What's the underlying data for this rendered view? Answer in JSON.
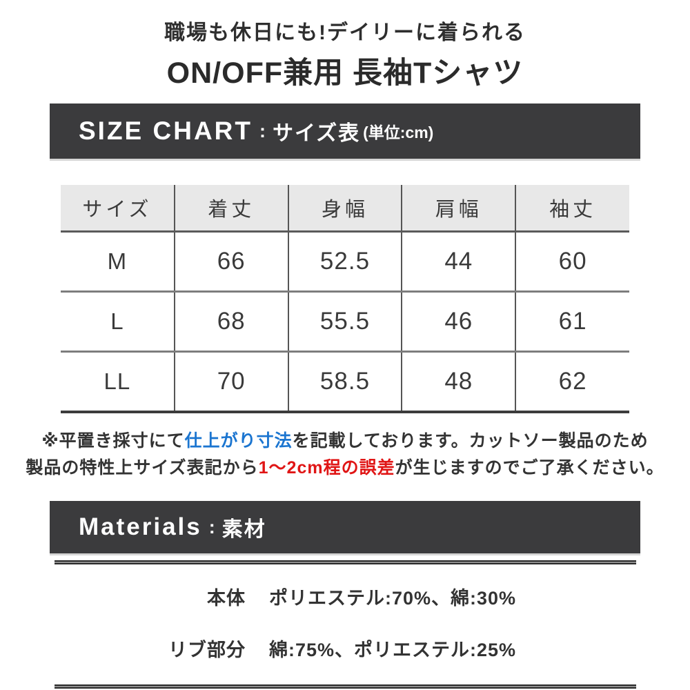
{
  "page_title": {
    "line1": "職場も休日にも!デイリーに着られる",
    "line2": "ON/OFF兼用 長袖Tシャツ"
  },
  "size_chart_banner": {
    "en_label": "SIZE CHART",
    "separator": ":",
    "ja_label": "サイズ表",
    "unit_label": "(単位:cm)"
  },
  "chart_data": {
    "type": "table",
    "title": "サイズ表",
    "unit": "cm",
    "columns": [
      "サイズ",
      "着丈",
      "身幅",
      "肩幅",
      "袖丈"
    ],
    "rows": [
      {
        "cells": [
          "M",
          "66",
          "52.5",
          "44",
          "60"
        ]
      },
      {
        "cells": [
          "L",
          "68",
          "55.5",
          "46",
          "61"
        ]
      },
      {
        "cells": [
          "LL",
          "70",
          "58.5",
          "48",
          "62"
        ]
      }
    ]
  },
  "measurement_note": {
    "line1_prefix": "※平置き採寸にて",
    "line1_highlight": "仕上がり寸法",
    "line1_suffix": "を記載しております。カットソー製品のため",
    "line2_prefix": "製品の特性上サイズ表記から",
    "line2_highlight": "1〜2cm程の誤差",
    "line2_suffix": "が生じますのでご了承ください。"
  },
  "materials_banner": {
    "en_label": "Materials",
    "separator": ":",
    "ja_label": "素材"
  },
  "materials": {
    "rows": [
      {
        "label": "本体",
        "value": "ポリエステル:70%、綿:30%"
      },
      {
        "label": "リブ部分",
        "value": "綿:75%、ポリエステル:25%"
      }
    ]
  },
  "colors": {
    "banner_bg": "#3b3b3d",
    "banner_text": "#ffffff",
    "table_header_bg": "#e8e8e8",
    "body_text": "#333333",
    "note_highlight_blue": "#1b75d0",
    "note_highlight_red": "#e01515",
    "rule": "#2a2a2a"
  }
}
